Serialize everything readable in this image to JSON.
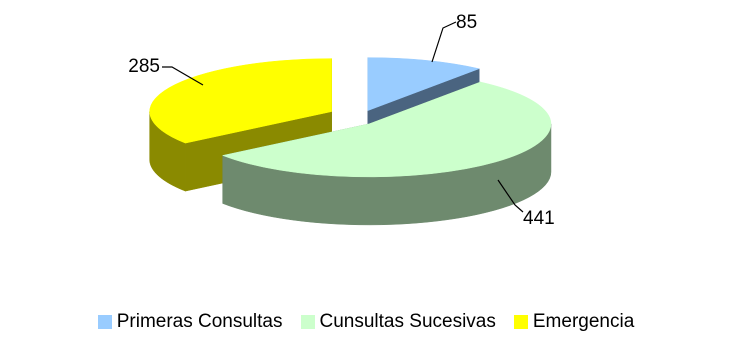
{
  "chart_data": {
    "type": "pie",
    "style": "3d-exploded",
    "categories": [
      "Primeras Consultas",
      "Cunsultas Sucesivas",
      "Emergencia"
    ],
    "values": [
      85,
      441,
      285
    ],
    "colors": [
      "#99ccff",
      "#ccffcc",
      "#ffff00"
    ],
    "side_colors": [
      "#4a6480",
      "#6e8a6e",
      "#8a8a00"
    ],
    "data_labels": [
      "85",
      "441",
      "285"
    ],
    "legend_position": "bottom",
    "grid": false
  },
  "legend": {
    "items": [
      {
        "label": "Primeras Consultas",
        "color": "#99ccff"
      },
      {
        "label": "Cunsultas Sucesivas",
        "color": "#ccffcc"
      },
      {
        "label": "Emergencia",
        "color": "#ffff00"
      }
    ]
  }
}
